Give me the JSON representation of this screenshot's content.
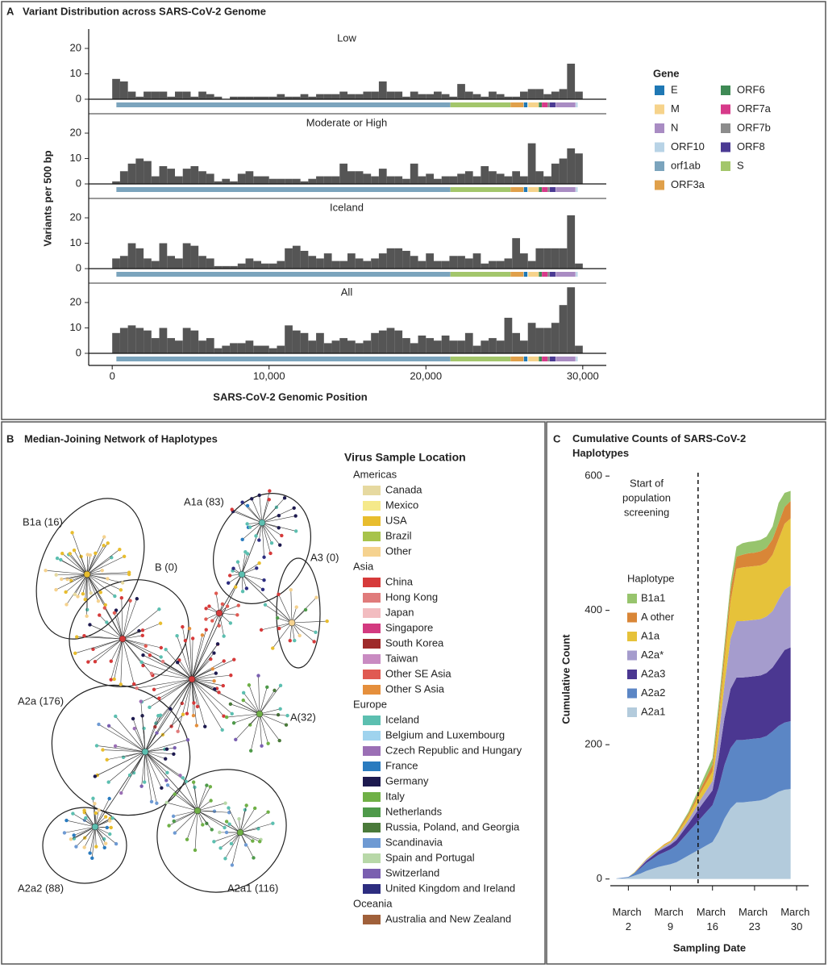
{
  "chart_data": [
    {
      "type": "histogram",
      "panel": "A",
      "title": "Variant Distribution across SARS-CoV-2 Genome",
      "x_label": "SARS-CoV-2 Genomic Position",
      "y_label": "Variants per 500 bp",
      "color": "#555555",
      "bins": [
        0,
        500,
        1000,
        1500,
        2000,
        2500,
        3000,
        3500,
        4000,
        4500,
        5000,
        5500,
        6000,
        6500,
        7000,
        7500,
        8000,
        8500,
        9000,
        9500,
        10000,
        10500,
        11000,
        11500,
        12000,
        12500,
        13000,
        13500,
        14000,
        14500,
        15000,
        15500,
        16000,
        16500,
        17000,
        17500,
        18000,
        18500,
        19000,
        19500,
        20000,
        20500,
        21000,
        21500,
        22000,
        22500,
        23000,
        23500,
        24000,
        24500,
        25000,
        25500,
        26000,
        26500,
        27000,
        27500,
        28000,
        28500,
        29000,
        29500,
        30000
      ],
      "facets": [
        {
          "title": "Low",
          "values": [
            8,
            7,
            3,
            1,
            3,
            3,
            3,
            1,
            3,
            3,
            1,
            3,
            2,
            1,
            0,
            1,
            1,
            1,
            1,
            1,
            1,
            2,
            1,
            1,
            2,
            1,
            2,
            2,
            2,
            3,
            2,
            2,
            3,
            3,
            7,
            3,
            3,
            1,
            3,
            2,
            2,
            3,
            2,
            1,
            6,
            3,
            2,
            1,
            3,
            2,
            1,
            1,
            3,
            4,
            4,
            2,
            3,
            4,
            14,
            3
          ]
        },
        {
          "title": "Moderate or High",
          "values": [
            1,
            5,
            8,
            10,
            9,
            3,
            7,
            6,
            3,
            6,
            7,
            5,
            4,
            1,
            2,
            1,
            4,
            5,
            3,
            3,
            2,
            2,
            2,
            2,
            1,
            2,
            3,
            3,
            3,
            8,
            5,
            5,
            4,
            3,
            6,
            3,
            3,
            2,
            8,
            3,
            4,
            2,
            3,
            3,
            4,
            5,
            3,
            7,
            5,
            4,
            3,
            5,
            3,
            16,
            5,
            3,
            8,
            10,
            14,
            12
          ]
        },
        {
          "title": "Iceland",
          "values": [
            4,
            5,
            10,
            8,
            4,
            3,
            10,
            5,
            4,
            10,
            9,
            5,
            4,
            1,
            1,
            1,
            2,
            4,
            3,
            2,
            2,
            3,
            8,
            9,
            7,
            5,
            4,
            6,
            3,
            3,
            6,
            4,
            3,
            4,
            6,
            8,
            8,
            7,
            5,
            3,
            6,
            3,
            3,
            5,
            5,
            4,
            6,
            2,
            3,
            3,
            4,
            12,
            6,
            3,
            8,
            8,
            8,
            8,
            21,
            2
          ]
        },
        {
          "title": "All",
          "values": [
            8,
            10,
            11,
            10,
            9,
            6,
            10,
            6,
            5,
            10,
            9,
            5,
            6,
            2,
            3,
            4,
            4,
            5,
            3,
            3,
            2,
            3,
            11,
            9,
            8,
            5,
            8,
            4,
            5,
            6,
            5,
            4,
            5,
            8,
            9,
            10,
            9,
            6,
            4,
            7,
            6,
            5,
            7,
            5,
            5,
            8,
            3,
            5,
            6,
            5,
            14,
            8,
            5,
            12,
            10,
            10,
            12,
            19,
            26,
            3
          ]
        }
      ],
      "xlim": [
        -1500,
        31500
      ],
      "xticks": [
        0,
        {
          "value": 10000,
          "label": "10,000"
        },
        {
          "value": 20000,
          "label": "20,000"
        },
        {
          "value": 30000,
          "label": "30,000"
        }
      ],
      "ylim": [
        0,
        27
      ],
      "yticks": [
        0,
        10,
        20
      ],
      "genes": {
        "title": "Gene",
        "items": [
          {
            "name": "E",
            "color": "#1f78b4",
            "start": 26245,
            "end": 26472
          },
          {
            "name": "M",
            "color": "#f6d38b",
            "start": 26523,
            "end": 27191
          },
          {
            "name": "N",
            "color": "#a98cc3",
            "start": 28274,
            "end": 29533
          },
          {
            "name": "ORF10",
            "color": "#b8d3e6",
            "start": 29558,
            "end": 29674
          },
          {
            "name": "orf1ab",
            "color": "#7ba4bd",
            "start": 266,
            "end": 21555
          },
          {
            "name": "ORF3a",
            "color": "#e0a04a",
            "start": 25393,
            "end": 26220
          },
          {
            "name": "ORF6",
            "color": "#3f8a55",
            "start": 27202,
            "end": 27387
          },
          {
            "name": "ORF7a",
            "color": "#d73a8a",
            "start": 27394,
            "end": 27759
          },
          {
            "name": "ORF7b",
            "color": "#8c8c8c",
            "start": 27756,
            "end": 27887
          },
          {
            "name": "ORF8",
            "color": "#4b3a93",
            "start": 27894,
            "end": 28259
          },
          {
            "name": "S",
            "color": "#a3c66b",
            "start": 21563,
            "end": 25384
          }
        ]
      }
    },
    {
      "type": "network",
      "panel": "B",
      "title": "Median-Joining Network of Haplotypes",
      "clusters": [
        "B1a (16)",
        "B (0)",
        "A1a (83)",
        "A3 (0)",
        "A2a (176)",
        "A(32)",
        "A2a2 (88)",
        "A2a1 (116)"
      ],
      "legend": {
        "title": "Virus Sample Location",
        "groups": [
          {
            "name": "Americas",
            "items": [
              {
                "name": "Canada",
                "color": "#e6d9a0"
              },
              {
                "name": "Mexico",
                "color": "#f5e98a"
              },
              {
                "name": "USA",
                "color": "#e8bd2e"
              },
              {
                "name": "Brazil",
                "color": "#a7c34a"
              },
              {
                "name": "Other",
                "color": "#f5d28f"
              }
            ]
          },
          {
            "name": "Asia",
            "items": [
              {
                "name": "China",
                "color": "#d63a3a"
              },
              {
                "name": "Hong Kong",
                "color": "#e07b7b"
              },
              {
                "name": "Japan",
                "color": "#f2bcc0"
              },
              {
                "name": "Singapore",
                "color": "#d33a80"
              },
              {
                "name": "South Korea",
                "color": "#9e2a2a"
              },
              {
                "name": "Taiwan",
                "color": "#c98bc2"
              },
              {
                "name": "Other SE Asia",
                "color": "#e05a52"
              },
              {
                "name": "Other S Asia",
                "color": "#e58f3c"
              }
            ]
          },
          {
            "name": "Europe",
            "items": [
              {
                "name": "Iceland",
                "color": "#5cbfb0"
              },
              {
                "name": "Belgium and Luxembourg",
                "color": "#9fd3ee"
              },
              {
                "name": "Czech Republic and Hungary",
                "color": "#9b6fb5"
              },
              {
                "name": "France",
                "color": "#2a7bbf"
              },
              {
                "name": "Germany",
                "color": "#1d1a4f"
              },
              {
                "name": "Italy",
                "color": "#6fb046"
              },
              {
                "name": "Netherlands",
                "color": "#4e9a4a"
              },
              {
                "name": "Russia, Poland, and Georgia",
                "color": "#4a7a3a"
              },
              {
                "name": "Scandinavia",
                "color": "#6e9ad3"
              },
              {
                "name": "Spain and Portugal",
                "color": "#b8d8a8"
              },
              {
                "name": "Switzerland",
                "color": "#7a5fb0"
              },
              {
                "name": "United Kingdom and Ireland",
                "color": "#2d2d80"
              }
            ]
          },
          {
            "name": "Oceania",
            "items": [
              {
                "name": "Australia and New Zealand",
                "color": "#a0603a"
              }
            ]
          }
        ]
      }
    },
    {
      "type": "area",
      "stacked": true,
      "panel": "C",
      "title": "Cumulative Counts of SARS-CoV-2 Haplotypes",
      "x_label": "Sampling Date",
      "y_label": "Cumulative Count",
      "legend_title": "Haplotype",
      "x": [
        0,
        1,
        2,
        3,
        4,
        5,
        6,
        7,
        8,
        9,
        10,
        11,
        12,
        13,
        14,
        15,
        16,
        17,
        18,
        19,
        20,
        21,
        22,
        23,
        24,
        25,
        26,
        27,
        28,
        29
      ],
      "xlim": [
        -1,
        32
      ],
      "xticks": [
        {
          "value": 2,
          "label": "March 2"
        },
        {
          "value": 9,
          "label": "March 9"
        },
        {
          "value": 16,
          "label": "March 16"
        },
        {
          "value": 23,
          "label": "March 23"
        },
        {
          "value": 30,
          "label": "March 30"
        }
      ],
      "ylim": [
        -10,
        605
      ],
      "yticks": [
        0,
        200,
        400,
        600
      ],
      "annotation": {
        "lines": [
          "Start of",
          "population",
          "screening"
        ],
        "x": 13.6
      },
      "series": [
        {
          "name": "A2a1",
          "color": "#b3cbdc",
          "values": [
            1,
            1,
            2,
            5,
            8,
            12,
            15,
            18,
            20,
            22,
            25,
            30,
            35,
            40,
            45,
            50,
            55,
            70,
            90,
            105,
            114,
            114,
            115,
            116,
            117,
            120,
            125,
            130,
            133,
            134
          ]
        },
        {
          "name": "A2a2",
          "color": "#5b86c5",
          "values": [
            0,
            1,
            1,
            4,
            8,
            12,
            15,
            18,
            20,
            22,
            25,
            30,
            35,
            40,
            45,
            50,
            55,
            65,
            80,
            90,
            93,
            93,
            93,
            93,
            93,
            93,
            95,
            98,
            100,
            101
          ]
        },
        {
          "name": "A2a3",
          "color": "#4b3791",
          "values": [
            0,
            0,
            0,
            0,
            2,
            3,
            4,
            5,
            6,
            7,
            8,
            10,
            12,
            15,
            18,
            20,
            22,
            45,
            70,
            88,
            93,
            93,
            93,
            93,
            93,
            94,
            95,
            100,
            108,
            110
          ]
        },
        {
          "name": "A2a*",
          "color": "#a59ccd",
          "values": [
            0,
            0,
            0,
            0,
            1,
            2,
            2,
            2,
            3,
            3,
            4,
            5,
            6,
            8,
            10,
            12,
            14,
            30,
            50,
            75,
            84,
            84,
            84,
            84,
            84,
            84,
            84,
            88,
            90,
            92
          ]
        },
        {
          "name": "A1a",
          "color": "#e6c23a",
          "values": [
            0,
            0,
            0,
            1,
            1,
            1,
            2,
            2,
            2,
            2,
            4,
            5,
            6,
            8,
            10,
            12,
            14,
            25,
            35,
            55,
            78,
            80,
            80,
            80,
            80,
            80,
            84,
            90,
            98,
            100
          ]
        },
        {
          "name": "A other",
          "color": "#d98637",
          "values": [
            0,
            0,
            0,
            0,
            0,
            0,
            0,
            0,
            1,
            1,
            2,
            3,
            3,
            4,
            6,
            8,
            10,
            12,
            14,
            16,
            18,
            19,
            20,
            20,
            21,
            22,
            23,
            24,
            25,
            26
          ]
        },
        {
          "name": "B1a1",
          "color": "#97c46d",
          "values": [
            0,
            0,
            0,
            0,
            0,
            0,
            0,
            0,
            0,
            0,
            2,
            2,
            3,
            5,
            6,
            8,
            10,
            13,
            11,
            11,
            15,
            17,
            17,
            17,
            17,
            17,
            19,
            30,
            21,
            15
          ]
        }
      ]
    }
  ]
}
